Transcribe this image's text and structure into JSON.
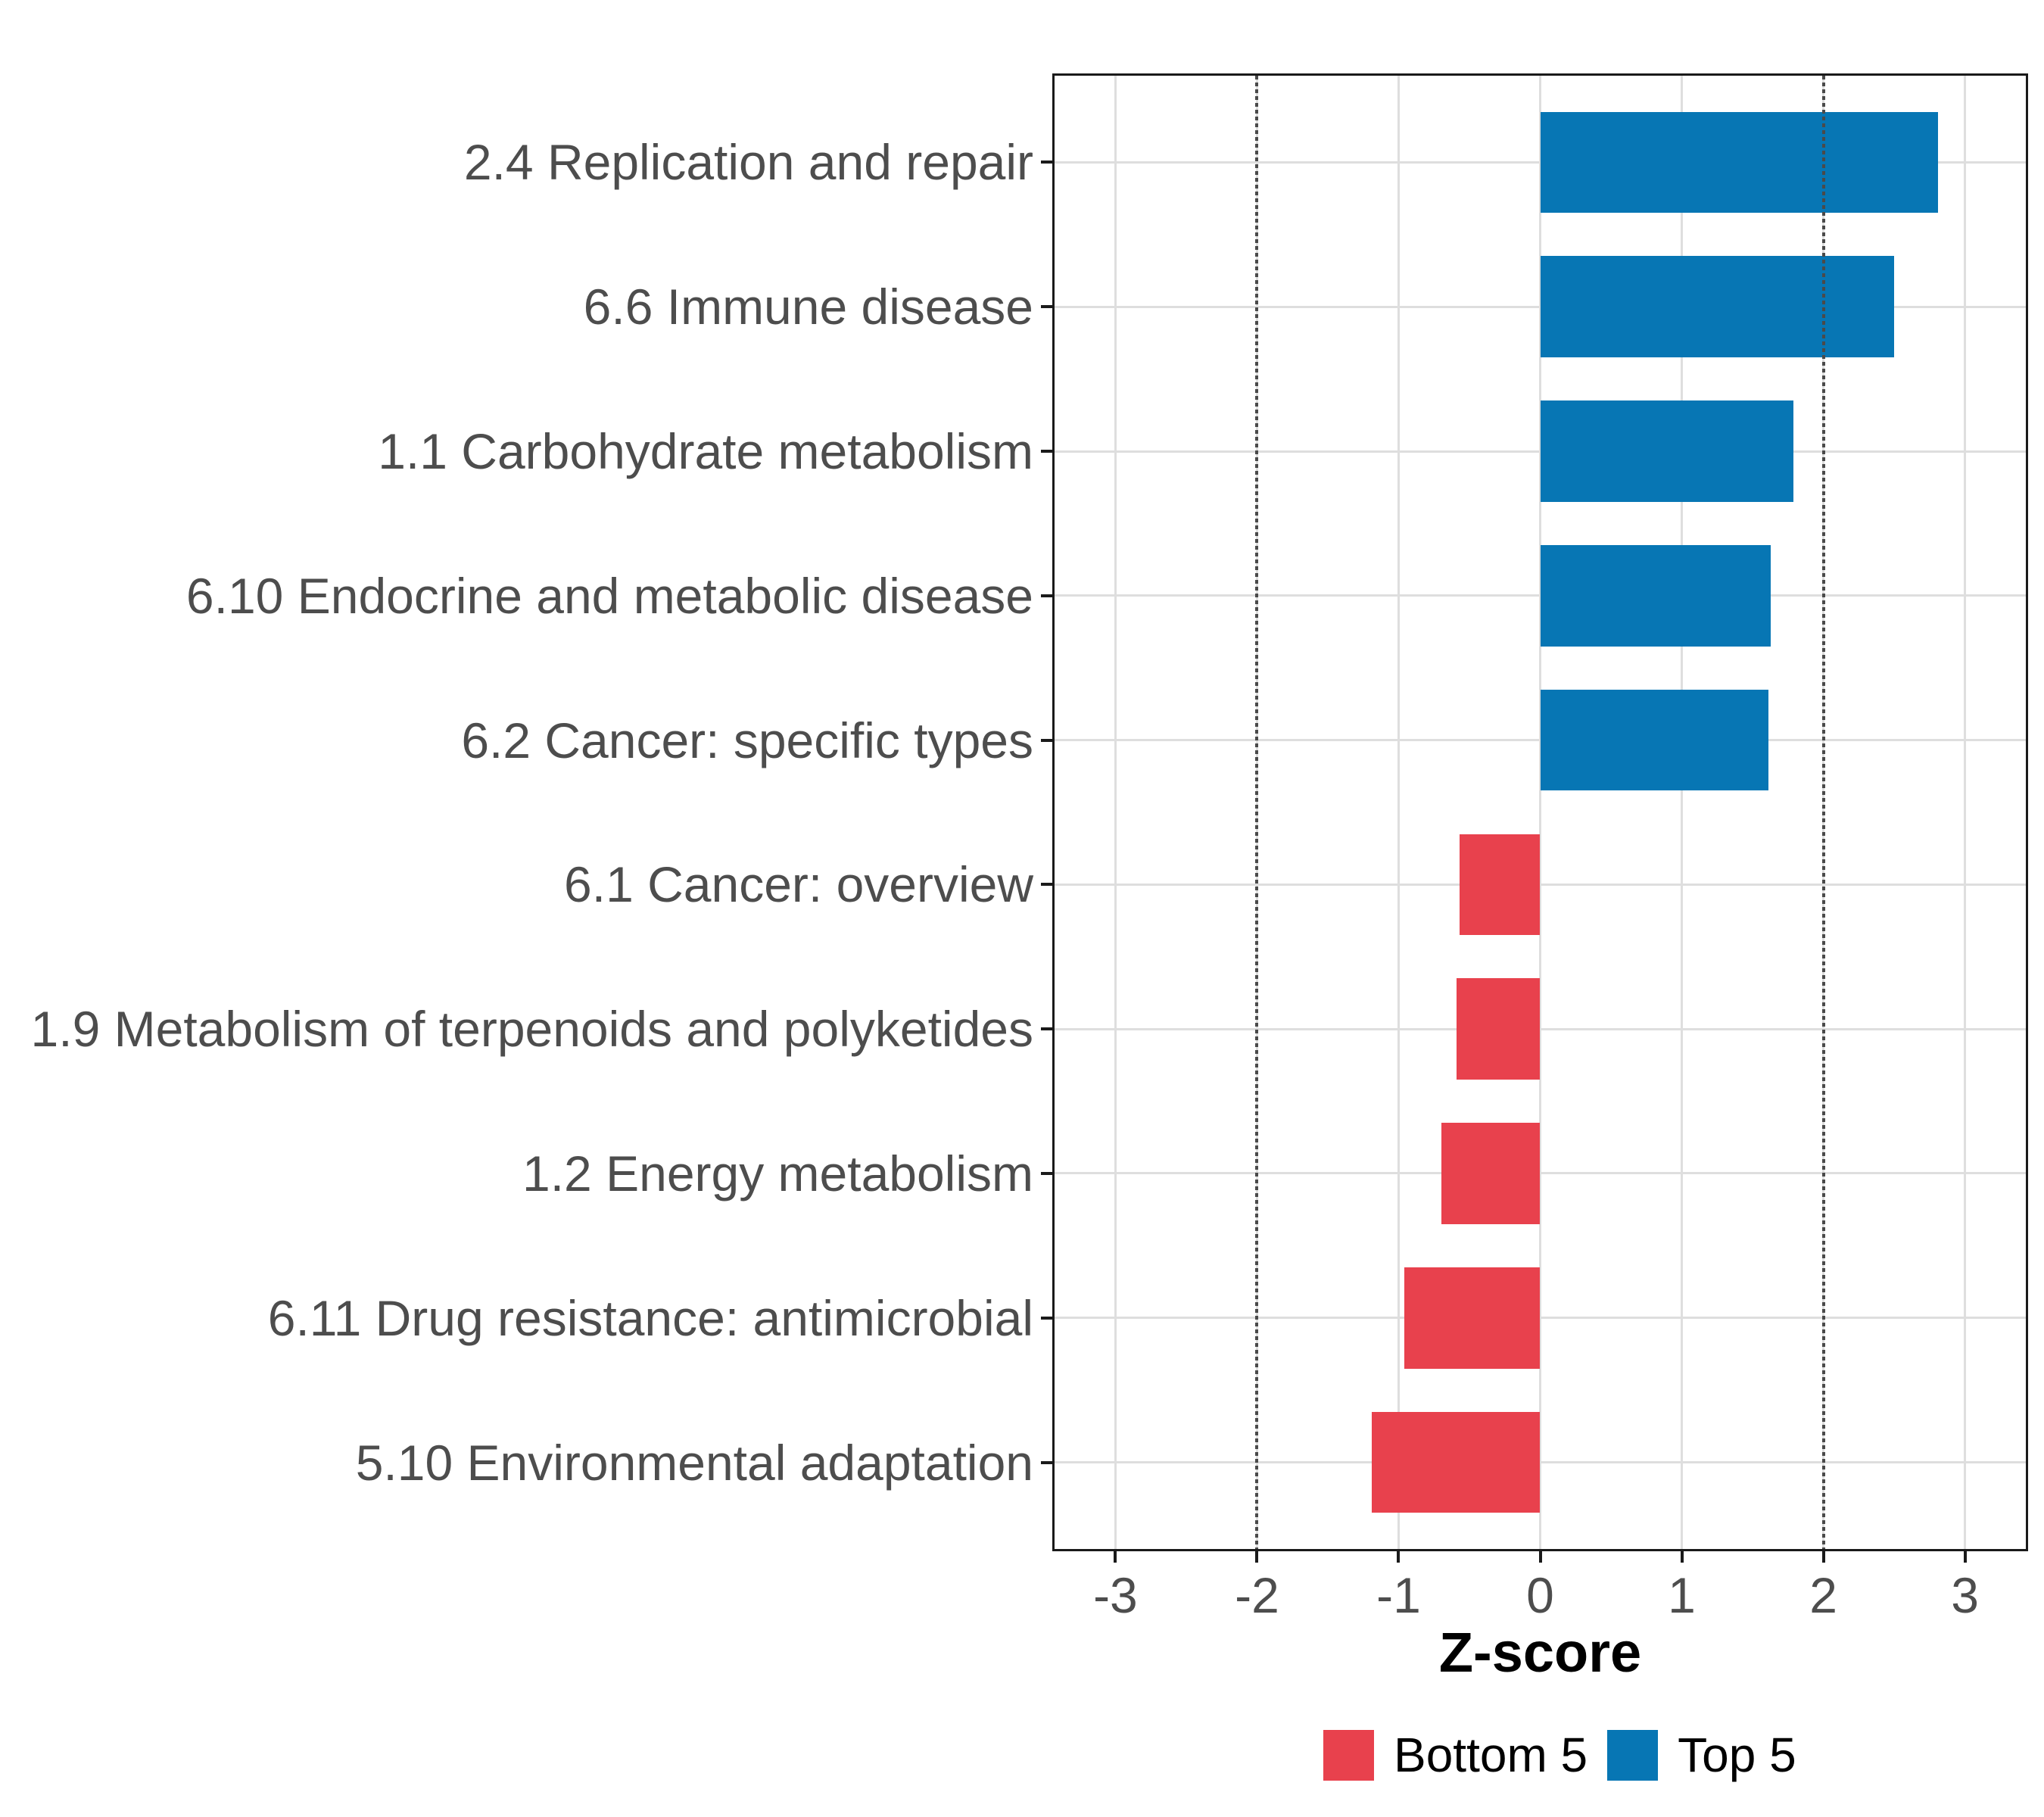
{
  "figure": {
    "background": "#FFFFFF"
  },
  "chart_data": {
    "type": "bar",
    "orientation": "horizontal",
    "title": "",
    "xlabel": "Z-score",
    "ylabel": "",
    "xlim": [
      -3.43,
      3.43
    ],
    "x_ticks": [
      "-3",
      "-2",
      "-1",
      "0",
      "1",
      "2",
      "3"
    ],
    "x_tick_values": [
      -3,
      -2,
      -1,
      0,
      1,
      2,
      3
    ],
    "reference_lines": [
      -2,
      2
    ],
    "grid": "major-only",
    "legend_position": "bottom",
    "bar_width_fraction": 0.7,
    "bars": [
      {
        "label": "2.4 Replication and repair",
        "value": 2.81,
        "group": "Top 5"
      },
      {
        "label": "6.6 Immune disease",
        "value": 2.5,
        "group": "Top 5"
      },
      {
        "label": "1.1 Carbohydrate metabolism",
        "value": 1.79,
        "group": "Top 5"
      },
      {
        "label": "6.10 Endocrine and metabolic disease",
        "value": 1.63,
        "group": "Top 5"
      },
      {
        "label": "6.2 Cancer: specific types",
        "value": 1.61,
        "group": "Top 5"
      },
      {
        "label": "6.1 Cancer: overview",
        "value": -0.57,
        "group": "Bottom 5"
      },
      {
        "label": "1.9 Metabolism of terpenoids and polyketides",
        "value": -0.59,
        "group": "Bottom 5"
      },
      {
        "label": "1.2 Energy metabolism",
        "value": -0.7,
        "group": "Bottom 5"
      },
      {
        "label": "6.11 Drug resistance: antimicrobial",
        "value": -0.96,
        "group": "Bottom 5"
      },
      {
        "label": "5.10 Environmental adaptation",
        "value": -1.19,
        "group": "Bottom 5"
      }
    ],
    "legend": [
      {
        "label": "Bottom 5",
        "color": "#E8414D"
      },
      {
        "label": "Top 5",
        "color": "#0776B4"
      }
    ],
    "colors": {
      "top5": "#0776B4",
      "bottom5": "#E8414D",
      "gridline": "#DEDEDE",
      "panel_border": "#1A1A1A",
      "reference_line": "#4A4A4A",
      "axis_text": "#4D4D4D",
      "axis_title": "#000000"
    }
  }
}
